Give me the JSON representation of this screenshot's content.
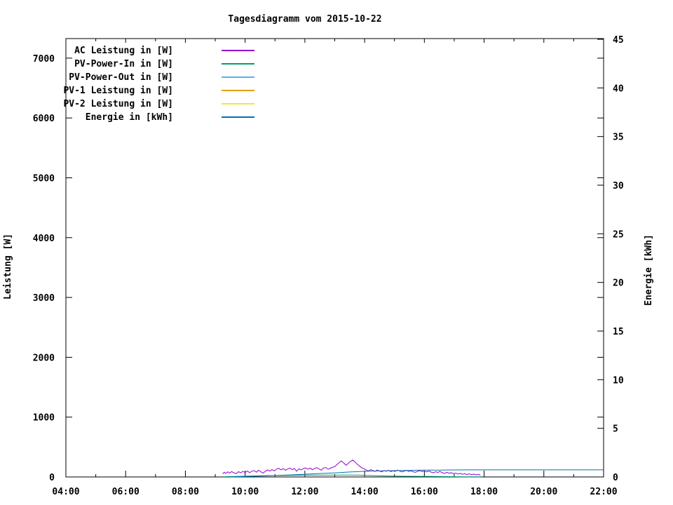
{
  "title": "Tagesdiagramm vom 2015-10-22",
  "colors": {
    "background": "#ffffff",
    "axis": "#000000",
    "ac": "#9400d3",
    "pv_in": "#009e73",
    "pv_out": "#56b4e9",
    "pv1": "#e69f00",
    "pv2": "#f0e442",
    "energie": "#0072b2"
  },
  "chart_data": {
    "type": "line",
    "title": "Tagesdiagramm vom 2015-10-22",
    "grid": false,
    "legend_position": "top-left-inside",
    "x_axis": {
      "label": "",
      "unit": "time",
      "range_hours": [
        4,
        22
      ],
      "major_tick_hours": [
        4,
        6,
        8,
        10,
        12,
        14,
        16,
        18,
        20,
        22
      ],
      "minor_tick_hours": [
        5,
        7,
        9,
        11,
        13,
        15,
        17,
        19,
        21
      ],
      "tick_labels": [
        "04:00",
        "06:00",
        "08:00",
        "10:00",
        "12:00",
        "14:00",
        "16:00",
        "18:00",
        "20:00",
        "22:00"
      ]
    },
    "y_axis_left": {
      "label": "Leistung [W]",
      "range": [
        0,
        7300
      ],
      "ticks": [
        0,
        1000,
        2000,
        3000,
        4000,
        5000,
        6000,
        7000
      ]
    },
    "y_axis_right": {
      "label": "Energie [kWh]",
      "range": [
        0,
        45
      ],
      "ticks": [
        0,
        5,
        10,
        15,
        20,
        25,
        30,
        35,
        40,
        45
      ]
    },
    "series": [
      {
        "name": "AC Leistung in [W]",
        "color": "#9400d3",
        "axis": "left",
        "layer": "front",
        "points": [
          [
            9.25,
            50
          ],
          [
            9.3,
            78
          ],
          [
            9.35,
            60
          ],
          [
            9.42,
            85
          ],
          [
            9.48,
            65
          ],
          [
            9.55,
            90
          ],
          [
            9.62,
            70
          ],
          [
            9.7,
            55
          ],
          [
            9.78,
            88
          ],
          [
            9.85,
            68
          ],
          [
            9.92,
            92
          ],
          [
            10.0,
            75
          ],
          [
            10.08,
            98
          ],
          [
            10.15,
            70
          ],
          [
            10.22,
            95
          ],
          [
            10.3,
            105
          ],
          [
            10.38,
            80
          ],
          [
            10.45,
            112
          ],
          [
            10.52,
            88
          ],
          [
            10.6,
            65
          ],
          [
            10.68,
            95
          ],
          [
            10.75,
            118
          ],
          [
            10.82,
            98
          ],
          [
            10.9,
            122
          ],
          [
            10.98,
            102
          ],
          [
            11.05,
            130
          ],
          [
            11.12,
            145
          ],
          [
            11.2,
            118
          ],
          [
            11.28,
            138
          ],
          [
            11.35,
            112
          ],
          [
            11.42,
            132
          ],
          [
            11.5,
            148
          ],
          [
            11.58,
            122
          ],
          [
            11.65,
            142
          ],
          [
            11.72,
            95
          ],
          [
            11.8,
            135
          ],
          [
            11.88,
            118
          ],
          [
            11.95,
            140
          ],
          [
            12.02,
            152
          ],
          [
            12.1,
            128
          ],
          [
            12.18,
            148
          ],
          [
            12.25,
            118
          ],
          [
            12.32,
            142
          ],
          [
            12.4,
            155
          ],
          [
            12.48,
            132
          ],
          [
            12.55,
            112
          ],
          [
            12.62,
            148
          ],
          [
            12.7,
            158
          ],
          [
            12.78,
            128
          ],
          [
            12.85,
            145
          ],
          [
            12.92,
            160
          ],
          [
            13.0,
            172
          ],
          [
            13.08,
            210
          ],
          [
            13.15,
            240
          ],
          [
            13.22,
            268
          ],
          [
            13.3,
            235
          ],
          [
            13.38,
            195
          ],
          [
            13.45,
            225
          ],
          [
            13.52,
            258
          ],
          [
            13.6,
            282
          ],
          [
            13.68,
            250
          ],
          [
            13.75,
            215
          ],
          [
            13.82,
            185
          ],
          [
            13.9,
            155
          ],
          [
            13.98,
            135
          ],
          [
            14.05,
            118
          ],
          [
            14.12,
            98
          ],
          [
            14.2,
            122
          ],
          [
            14.28,
            108
          ],
          [
            14.35,
            92
          ],
          [
            14.42,
            115
          ],
          [
            14.5,
            98
          ],
          [
            14.58,
            85
          ],
          [
            14.65,
            108
          ],
          [
            14.72,
            95
          ],
          [
            14.8,
            112
          ],
          [
            14.88,
            88
          ],
          [
            14.95,
            102
          ],
          [
            15.02,
            92
          ],
          [
            15.1,
            115
          ],
          [
            15.18,
            98
          ],
          [
            15.25,
            85
          ],
          [
            15.32,
            95
          ],
          [
            15.4,
            110
          ],
          [
            15.48,
            92
          ],
          [
            15.55,
            102
          ],
          [
            15.62,
            88
          ],
          [
            15.7,
            78
          ],
          [
            15.78,
            95
          ],
          [
            15.85,
            105
          ],
          [
            15.92,
            90
          ],
          [
            16.0,
            98
          ],
          [
            16.08,
            85
          ],
          [
            16.15,
            100
          ],
          [
            16.22,
            82
          ],
          [
            16.3,
            68
          ],
          [
            16.38,
            88
          ],
          [
            16.45,
            75
          ],
          [
            16.52,
            92
          ],
          [
            16.6,
            70
          ],
          [
            16.68,
            58
          ],
          [
            16.75,
            78
          ],
          [
            16.82,
            62
          ],
          [
            16.9,
            72
          ],
          [
            16.98,
            55
          ],
          [
            17.05,
            65
          ],
          [
            17.12,
            48
          ],
          [
            17.2,
            60
          ],
          [
            17.28,
            45
          ],
          [
            17.35,
            55
          ],
          [
            17.42,
            40
          ],
          [
            17.5,
            52
          ],
          [
            17.58,
            38
          ],
          [
            17.65,
            48
          ],
          [
            17.72,
            35
          ],
          [
            17.8,
            42
          ],
          [
            17.88,
            30
          ]
        ]
      },
      {
        "name": "PV-Power-In in [W]",
        "color": "#009e73",
        "axis": "left",
        "layer": "front",
        "points": [
          [
            9.3,
            5
          ],
          [
            9.8,
            10
          ],
          [
            10.3,
            18
          ],
          [
            10.8,
            22
          ],
          [
            11.3,
            25
          ],
          [
            11.8,
            28
          ],
          [
            12.3,
            30
          ],
          [
            12.8,
            30
          ],
          [
            13.3,
            32
          ],
          [
            13.8,
            30
          ],
          [
            14.3,
            22
          ],
          [
            14.8,
            15
          ],
          [
            15.3,
            12
          ],
          [
            15.8,
            10
          ],
          [
            16.3,
            8
          ],
          [
            16.8,
            6
          ],
          [
            17.3,
            4
          ],
          [
            17.9,
            2
          ]
        ]
      },
      {
        "name": "PV-Power-Out in [W]",
        "color": "#56b4e9",
        "axis": "left",
        "layer": "back",
        "points": [
          [
            9.3,
            0
          ],
          [
            10.5,
            0
          ],
          [
            12.0,
            0
          ],
          [
            13.5,
            0
          ],
          [
            15.0,
            0
          ],
          [
            16.5,
            0
          ],
          [
            17.9,
            0
          ]
        ]
      },
      {
        "name": "PV-1 Leistung in [W]",
        "color": "#e69f00",
        "axis": "left",
        "layer": "back",
        "points": [
          [
            9.3,
            0
          ],
          [
            10.5,
            0
          ],
          [
            12.0,
            0
          ],
          [
            13.5,
            0
          ],
          [
            15.0,
            0
          ],
          [
            16.5,
            0
          ],
          [
            17.9,
            0
          ]
        ]
      },
      {
        "name": "PV-2 Leistung in [W]",
        "color": "#f0e442",
        "axis": "left",
        "layer": "back",
        "points": [
          [
            9.3,
            0
          ],
          [
            10.5,
            0
          ],
          [
            12.0,
            0
          ],
          [
            13.5,
            0
          ],
          [
            15.0,
            0
          ],
          [
            16.5,
            0
          ],
          [
            17.9,
            0
          ]
        ]
      },
      {
        "name": "Energie in [kWh]",
        "color": "#0072b2",
        "axis": "right",
        "layer": "front",
        "points": [
          [
            9.5,
            0.01
          ],
          [
            10.0,
            0.04
          ],
          [
            10.5,
            0.09
          ],
          [
            11.0,
            0.15
          ],
          [
            11.5,
            0.21
          ],
          [
            12.0,
            0.28
          ],
          [
            12.5,
            0.35
          ],
          [
            13.0,
            0.42
          ],
          [
            13.5,
            0.51
          ],
          [
            14.0,
            0.58
          ],
          [
            14.5,
            0.62
          ],
          [
            15.0,
            0.65
          ],
          [
            15.5,
            0.68
          ],
          [
            16.0,
            0.7
          ],
          [
            16.5,
            0.71
          ],
          [
            17.0,
            0.72
          ],
          [
            17.5,
            0.725
          ],
          [
            18.0,
            0.73
          ],
          [
            19.0,
            0.73
          ],
          [
            20.0,
            0.73
          ],
          [
            21.0,
            0.73
          ],
          [
            22.0,
            0.73
          ]
        ]
      }
    ]
  },
  "legend": {
    "items": [
      {
        "label": "AC Leistung in [W]",
        "color": "#9400d3"
      },
      {
        "label": "PV-Power-In in [W]",
        "color": "#009e73"
      },
      {
        "label": "PV-Power-Out in [W]",
        "color": "#56b4e9"
      },
      {
        "label": "PV-1 Leistung in [W]",
        "color": "#e69f00"
      },
      {
        "label": "PV-2 Leistung in [W]",
        "color": "#f0e442"
      },
      {
        "label": "Energie in [kWh]",
        "color": "#0072b2"
      }
    ]
  }
}
